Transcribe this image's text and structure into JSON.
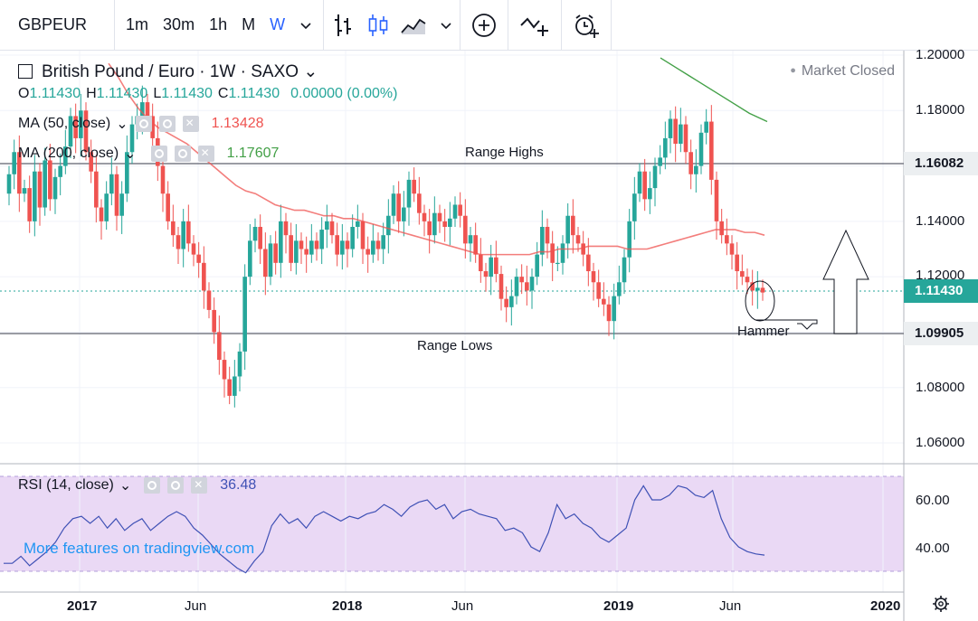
{
  "toolbar": {
    "symbol": "GBPEUR",
    "intervals": [
      "1m",
      "30m",
      "1h",
      "M",
      "W"
    ],
    "active_interval": "W",
    "icons": [
      "chevron-down-icon",
      "bar-chart-icon",
      "candlestick-icon",
      "area-chart-icon",
      "chevron-down-icon",
      "plus-circle-icon",
      "indicators-icon",
      "alert-icon"
    ]
  },
  "legend": {
    "title": "British Pound / Euro · 1W · SAXO",
    "ohlc": {
      "o_label": "O",
      "o": "1.11430",
      "h_label": "H",
      "h": "1.11430",
      "l_label": "L",
      "l": "1.11430",
      "c_label": "C",
      "c": "1.11430",
      "change": "0.00000 (0.00%)"
    },
    "ma50": {
      "label": "MA (50, close)",
      "value": "1.13428",
      "color": "#ef5350"
    },
    "ma200": {
      "label": "MA (200, close)",
      "value": "1.17607",
      "color": "#43a047"
    },
    "market_status": "Market Closed"
  },
  "rsi": {
    "label": "RSI (14, close)",
    "value": "36.48",
    "color": "#3f51b5",
    "upper": "60.00",
    "lower": "40.00"
  },
  "price_axis": {
    "labels": [
      "1.20000",
      "1.18000",
      "1.14000",
      "1.12000",
      "1.08000",
      "1.06000"
    ],
    "tag_range_high": "1.16082",
    "tag_last": "1.11430",
    "tag_range_low": "1.09905"
  },
  "time_axis": {
    "labels": [
      "2017",
      "Jun",
      "2018",
      "Jun",
      "2019",
      "Jun",
      "2020"
    ]
  },
  "annotations": {
    "range_highs": "Range Highs",
    "range_lows": "Range Lows",
    "hammer": "Hammer"
  },
  "footer_link": "More features on tradingview.com",
  "chart_data": {
    "type": "candlestick",
    "symbol": "GBPEUR",
    "interval": "1W",
    "ylim": [
      1.055,
      1.205
    ],
    "horizontal_levels": [
      {
        "label": "Range Highs",
        "value": 1.16082
      },
      {
        "label": "Range Lows",
        "value": 1.09905
      }
    ],
    "last_price": 1.1143,
    "close_series": [
      1.157,
      1.165,
      1.15,
      1.152,
      1.14,
      1.158,
      1.145,
      1.162,
      1.148,
      1.156,
      1.16,
      1.167,
      1.178,
      1.17,
      1.18,
      1.165,
      1.158,
      1.145,
      1.14,
      1.15,
      1.157,
      1.142,
      1.15,
      1.165,
      1.175,
      1.178,
      1.183,
      1.178,
      1.17,
      1.16,
      1.15,
      1.14,
      1.135,
      1.13,
      1.14,
      1.132,
      1.128,
      1.125,
      1.115,
      1.108,
      1.1,
      1.09,
      1.083,
      1.077,
      1.084,
      1.093,
      1.12,
      1.133,
      1.138,
      1.13,
      1.12,
      1.132,
      1.125,
      1.14,
      1.135,
      1.125,
      1.133,
      1.13,
      1.128,
      1.133,
      1.13,
      1.137,
      1.14,
      1.135,
      1.128,
      1.133,
      1.13,
      1.138,
      1.14,
      1.13,
      1.128,
      1.133,
      1.13,
      1.135,
      1.142,
      1.15,
      1.14,
      1.145,
      1.155,
      1.15,
      1.143,
      1.14,
      1.135,
      1.143,
      1.14,
      1.138,
      1.141,
      1.146,
      1.142,
      1.132,
      1.135,
      1.128,
      1.122,
      1.12,
      1.127,
      1.121,
      1.112,
      1.109,
      1.113,
      1.12,
      1.118,
      1.115,
      1.12,
      1.128,
      1.138,
      1.132,
      1.125,
      1.125,
      1.132,
      1.142,
      1.135,
      1.132,
      1.128,
      1.122,
      1.118,
      1.112,
      1.11,
      1.104,
      1.113,
      1.118,
      1.127,
      1.14,
      1.15,
      1.158,
      1.148,
      1.152,
      1.16,
      1.163,
      1.17,
      1.177,
      1.168,
      1.175,
      1.165,
      1.157,
      1.16,
      1.172,
      1.176,
      1.155,
      1.14,
      1.135,
      1.132,
      1.128,
      1.122,
      1.12,
      1.118,
      1.115,
      1.116,
      1.1143
    ],
    "ma50_series": [
      1.197,
      1.192,
      1.186,
      1.181,
      1.177,
      1.174,
      1.172,
      1.17,
      1.168,
      1.165,
      1.162,
      1.159,
      1.156,
      1.153,
      1.151,
      1.15,
      1.148,
      1.146,
      1.145,
      1.144,
      1.144,
      1.143,
      1.142,
      1.142,
      1.141,
      1.141,
      1.14,
      1.139,
      1.138,
      1.137,
      1.136,
      1.135,
      1.134,
      1.133,
      1.132,
      1.131,
      1.13,
      1.129,
      1.128,
      1.128,
      1.128,
      1.128,
      1.128,
      1.128,
      1.129,
      1.129,
      1.13,
      1.13,
      1.13,
      1.131,
      1.131,
      1.131,
      1.131,
      1.13,
      1.13,
      1.13,
      1.131,
      1.132,
      1.133,
      1.134,
      1.135,
      1.136,
      1.137,
      1.137,
      1.137,
      1.136,
      1.136,
      1.135
    ],
    "ma200_series": [
      1.199,
      1.195,
      1.191,
      1.187,
      1.183,
      1.179,
      1.176
    ],
    "rsi_series": [
      33,
      33,
      36,
      32,
      35,
      38,
      42,
      48,
      52,
      53,
      50,
      53,
      48,
      52,
      47,
      50,
      52,
      47,
      50,
      53,
      55,
      53,
      48,
      45,
      41,
      37,
      34,
      31,
      29,
      34,
      38,
      49,
      54,
      50,
      52,
      48,
      53,
      55,
      53,
      51,
      53,
      52,
      54,
      55,
      58,
      56,
      53,
      57,
      59,
      60,
      56,
      58,
      52,
      55,
      56,
      54,
      53,
      52,
      47,
      48,
      46,
      40,
      38,
      46,
      58,
      52,
      54,
      50,
      48,
      44,
      42,
      45,
      48,
      60,
      66,
      60,
      60,
      62,
      66,
      65,
      62,
      61,
      64,
      52,
      44,
      40,
      38,
      37,
      36.48
    ]
  }
}
